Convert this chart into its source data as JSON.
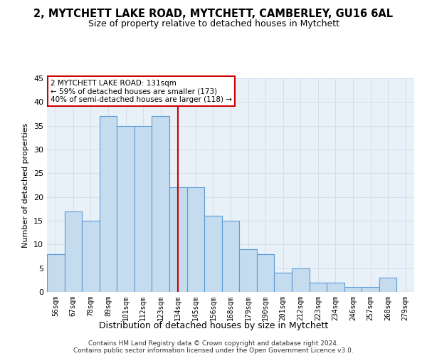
{
  "title": "2, MYTCHETT LAKE ROAD, MYTCHETT, CAMBERLEY, GU16 6AL",
  "subtitle": "Size of property relative to detached houses in Mytchett",
  "xlabel": "Distribution of detached houses by size in Mytchett",
  "ylabel": "Number of detached properties",
  "categories": [
    "56sqm",
    "67sqm",
    "78sqm",
    "89sqm",
    "101sqm",
    "112sqm",
    "123sqm",
    "134sqm",
    "145sqm",
    "156sqm",
    "168sqm",
    "179sqm",
    "190sqm",
    "201sqm",
    "212sqm",
    "223sqm",
    "234sqm",
    "246sqm",
    "257sqm",
    "268sqm",
    "279sqm"
  ],
  "values": [
    8,
    17,
    15,
    37,
    35,
    35,
    37,
    22,
    22,
    16,
    15,
    9,
    8,
    4,
    5,
    2,
    2,
    1,
    1,
    3,
    0
  ],
  "bar_color": "#c5dcee",
  "bar_edge_color": "#5b9bd5",
  "red_line_index": 7,
  "highlight_line_color": "#cc0000",
  "annotation_title": "2 MYTCHETT LAKE ROAD: 131sqm",
  "annotation_line1": "← 59% of detached houses are smaller (173)",
  "annotation_line2": "40% of semi-detached houses are larger (118) →",
  "annotation_box_edge": "#cc0000",
  "ylim": [
    0,
    45
  ],
  "yticks": [
    0,
    5,
    10,
    15,
    20,
    25,
    30,
    35,
    40,
    45
  ],
  "footer_line1": "Contains HM Land Registry data © Crown copyright and database right 2024.",
  "footer_line2": "Contains public sector information licensed under the Open Government Licence v3.0.",
  "bg_color": "#ffffff",
  "grid_color": "#d0dce8"
}
